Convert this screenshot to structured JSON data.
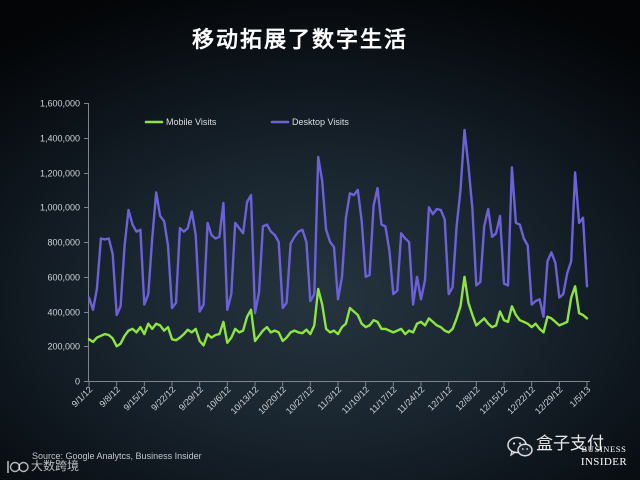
{
  "source": "Source: Google Analytcs, Business Insider",
  "logo": {
    "line1": "BUSINESS",
    "line2": "INSIDER"
  },
  "watermark": {
    "text": "盒子支付",
    "icon": "wechat-icon"
  },
  "corner_watermark": {
    "text": "大数跨境",
    "icon": "dashu-logo-icon"
  },
  "colors": {
    "mobile": "#8ee53f",
    "desktop": "#6c61d9",
    "axis": "#7f858b",
    "tick_text": "#cfd3d6",
    "legend_text": "#dcdfe2"
  },
  "chart_data": {
    "type": "line",
    "title": "移动拓展了数字生活",
    "xlabel": "",
    "ylabel": "",
    "ylim": [
      0,
      1600000
    ],
    "grid": false,
    "legend": "top-left",
    "yticks": [
      0,
      200000,
      400000,
      600000,
      800000,
      1000000,
      1200000,
      1400000,
      1600000
    ],
    "ytick_labels": [
      "0",
      "200,000",
      "400,000",
      "600,000",
      "800,000",
      "1,000,000",
      "1,200,000",
      "1,400,000",
      "1,600,000"
    ],
    "xticks": [
      "9/1/12",
      "9/8/12",
      "9/15/12",
      "9/22/12",
      "9/29/12",
      "10/6/12",
      "10/13/12",
      "10/20/12",
      "10/27/12",
      "11/3/12",
      "11/10/12",
      "11/17/12",
      "11/24/12",
      "12/1/12",
      "12/8/12",
      "12/15/12",
      "12/22/12",
      "12/29/12",
      "1/5/13"
    ],
    "x": [
      "9/1/12",
      "9/2/12",
      "9/3/12",
      "9/4/12",
      "9/5/12",
      "9/6/12",
      "9/7/12",
      "9/8/12",
      "9/9/12",
      "9/10/12",
      "9/11/12",
      "9/12/12",
      "9/13/12",
      "9/14/12",
      "9/15/12",
      "9/16/12",
      "9/17/12",
      "9/18/12",
      "9/19/12",
      "9/20/12",
      "9/21/12",
      "9/22/12",
      "9/23/12",
      "9/24/12",
      "9/25/12",
      "9/26/12",
      "9/27/12",
      "9/28/12",
      "9/29/12",
      "9/30/12",
      "10/1/12",
      "10/2/12",
      "10/3/12",
      "10/4/12",
      "10/5/12",
      "10/6/12",
      "10/7/12",
      "10/8/12",
      "10/9/12",
      "10/10/12",
      "10/11/12",
      "10/12/12",
      "10/13/12",
      "10/14/12",
      "10/15/12",
      "10/16/12",
      "10/17/12",
      "10/18/12",
      "10/19/12",
      "10/20/12",
      "10/21/12",
      "10/22/12",
      "10/23/12",
      "10/24/12",
      "10/25/12",
      "10/26/12",
      "10/27/12",
      "10/28/12",
      "10/29/12",
      "10/30/12",
      "10/31/12",
      "11/1/12",
      "11/2/12",
      "11/3/12",
      "11/4/12",
      "11/5/12",
      "11/6/12",
      "11/7/12",
      "11/8/12",
      "11/9/12",
      "11/10/12",
      "11/11/12",
      "11/12/12",
      "11/13/12",
      "11/14/12",
      "11/15/12",
      "11/16/12",
      "11/17/12",
      "11/18/12",
      "11/19/12",
      "11/20/12",
      "11/21/12",
      "11/22/12",
      "11/23/12",
      "11/24/12",
      "11/25/12",
      "11/26/12",
      "11/27/12",
      "11/28/12",
      "11/29/12",
      "11/30/12",
      "12/1/12",
      "12/2/12",
      "12/3/12",
      "12/4/12",
      "12/5/12",
      "12/6/12",
      "12/7/12",
      "12/8/12",
      "12/9/12",
      "12/10/12",
      "12/11/12",
      "12/12/12",
      "12/13/12",
      "12/14/12",
      "12/15/12",
      "12/16/12",
      "12/17/12",
      "12/18/12",
      "12/19/12",
      "12/20/12",
      "12/21/12",
      "12/22/12",
      "12/23/12",
      "12/24/12",
      "12/25/12",
      "12/26/12",
      "12/27/12",
      "12/28/12",
      "12/29/12",
      "12/30/12",
      "12/31/12",
      "1/1/13",
      "1/2/13",
      "1/3/13",
      "1/4/13",
      "1/5/13"
    ],
    "series": [
      {
        "name": "Mobile Visits",
        "color": "#8ee53f",
        "values": [
          240000,
          225000,
          250000,
          260000,
          270000,
          265000,
          245000,
          200000,
          215000,
          260000,
          290000,
          300000,
          280000,
          310000,
          270000,
          330000,
          300000,
          330000,
          320000,
          290000,
          310000,
          240000,
          235000,
          250000,
          270000,
          295000,
          280000,
          300000,
          230000,
          205000,
          270000,
          250000,
          265000,
          270000,
          340000,
          220000,
          250000,
          300000,
          280000,
          290000,
          370000,
          410000,
          230000,
          260000,
          290000,
          310000,
          280000,
          290000,
          280000,
          230000,
          250000,
          280000,
          290000,
          280000,
          275000,
          295000,
          270000,
          320000,
          530000,
          440000,
          300000,
          280000,
          290000,
          270000,
          310000,
          330000,
          420000,
          400000,
          380000,
          330000,
          310000,
          320000,
          350000,
          340000,
          300000,
          300000,
          290000,
          280000,
          290000,
          300000,
          270000,
          290000,
          280000,
          330000,
          340000,
          320000,
          360000,
          340000,
          320000,
          310000,
          290000,
          280000,
          300000,
          360000,
          430000,
          600000,
          450000,
          380000,
          320000,
          340000,
          360000,
          330000,
          310000,
          320000,
          400000,
          350000,
          340000,
          430000,
          380000,
          350000,
          340000,
          330000,
          310000,
          330000,
          300000,
          280000,
          370000,
          360000,
          340000,
          320000,
          330000,
          340000,
          480000,
          545000,
          390000,
          380000,
          360000
        ]
      },
      {
        "name": "Desktop Visits",
        "color": "#6c61d9",
        "values": [
          480000,
          410000,
          530000,
          820000,
          815000,
          820000,
          730000,
          380000,
          430000,
          780000,
          985000,
          900000,
          860000,
          870000,
          440000,
          500000,
          820000,
          1085000,
          950000,
          920000,
          780000,
          420000,
          450000,
          880000,
          860000,
          880000,
          975000,
          840000,
          400000,
          440000,
          910000,
          840000,
          820000,
          830000,
          1025000,
          410000,
          500000,
          910000,
          880000,
          850000,
          1030000,
          1070000,
          390000,
          510000,
          890000,
          900000,
          860000,
          840000,
          800000,
          420000,
          450000,
          790000,
          830000,
          860000,
          870000,
          800000,
          460000,
          500000,
          1290000,
          1150000,
          870000,
          800000,
          770000,
          470000,
          600000,
          940000,
          1080000,
          1070000,
          1100000,
          920000,
          600000,
          610000,
          1010000,
          1110000,
          900000,
          890000,
          750000,
          500000,
          520000,
          850000,
          820000,
          800000,
          440000,
          600000,
          470000,
          580000,
          1000000,
          960000,
          990000,
          985000,
          930000,
          500000,
          540000,
          890000,
          1100000,
          1445000,
          1240000,
          990000,
          550000,
          570000,
          890000,
          990000,
          830000,
          850000,
          950000,
          560000,
          550000,
          1230000,
          910000,
          900000,
          820000,
          780000,
          440000,
          460000,
          470000,
          370000,
          690000,
          740000,
          680000,
          480000,
          500000,
          620000,
          690000,
          1200000,
          910000,
          940000,
          545000
        ]
      }
    ]
  }
}
